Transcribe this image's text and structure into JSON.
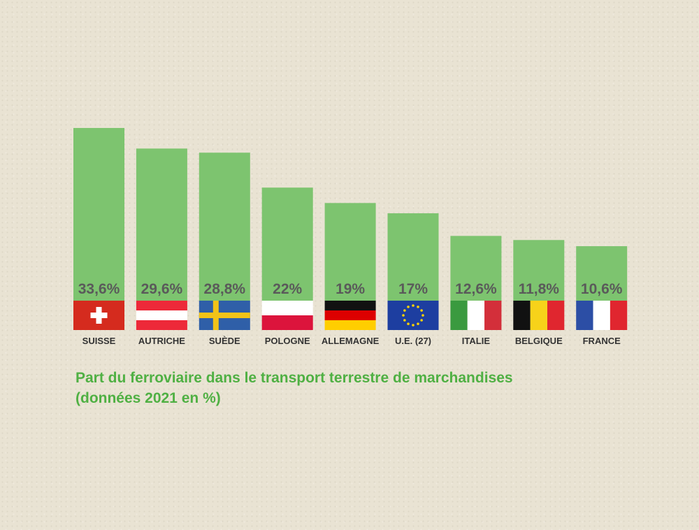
{
  "chart_data": {
    "type": "bar",
    "categories": [
      "SUISSE",
      "AUTRICHE",
      "SUÈDE",
      "POLOGNE",
      "ALLEMAGNE",
      "U.E. (27)",
      "ITALIE",
      "BELGIQUE",
      "FRANCE"
    ],
    "values": [
      33.6,
      29.6,
      28.8,
      22,
      19,
      17,
      12.6,
      11.8,
      10.6
    ],
    "value_labels": [
      "33,6%",
      "29,6%",
      "28,8%",
      "22%",
      "19%",
      "17%",
      "12,6%",
      "11,8%",
      "10,6%"
    ],
    "flags": [
      "switzerland-flag",
      "austria-flag",
      "sweden-flag",
      "poland-flag",
      "germany-flag",
      "eu-flag",
      "italy-flag",
      "belgium-flag",
      "france-flag"
    ],
    "bar_color": "#7dc46f",
    "title": "Part du ferroviaire dans le transport terrestre de marchandises",
    "subtitle": "(données 2021 en %)",
    "xlabel": "",
    "ylabel": "",
    "grid": false
  }
}
